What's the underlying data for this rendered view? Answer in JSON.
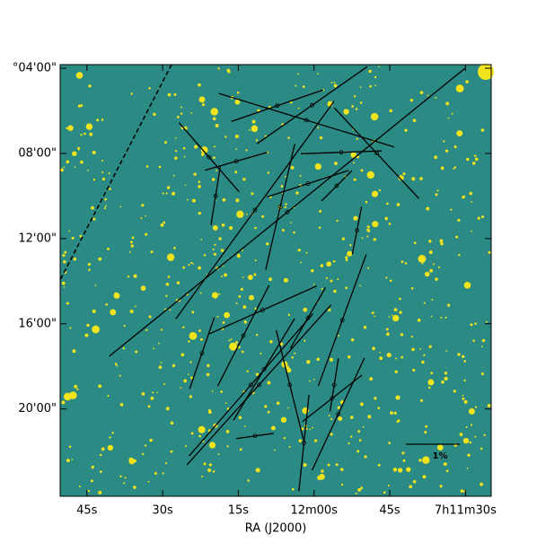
{
  "chart_data": {
    "type": "vector",
    "xlabel": "RA (J2000)",
    "xlim": [
      110.3,
      24.9
    ],
    "ylim": [
      3.83,
      24.1
    ],
    "xticks": [
      {
        "value": 105,
        "label": "45s"
      },
      {
        "value": 90,
        "label": "30s"
      },
      {
        "value": 75,
        "label": "15s"
      },
      {
        "value": 60,
        "label": "12m00s"
      },
      {
        "value": 45,
        "label": "45s"
      },
      {
        "value": 30,
        "label": "7h11m30s"
      }
    ],
    "yticks": [
      {
        "value": 4,
        "label": "°04'00\""
      },
      {
        "value": 8,
        "label": "08'00\""
      },
      {
        "value": 12,
        "label": "12'00\""
      },
      {
        "value": 16,
        "label": "16'00\""
      },
      {
        "value": 20,
        "label": "20'00\""
      }
    ],
    "color": "#000000",
    "vectors": {
      "x": [
        65.3,
        61.5,
        67.3,
        80.8,
        79.5,
        66.7,
        62.0,
        71.7,
        47.6,
        54.6,
        51.5,
        70.2,
        82.2,
        70.9,
        74.0,
        71.7,
        69.9,
        72.5,
        55.2,
        64.8,
        56.4,
        56.0,
        54.4,
        61.2,
        60.4,
        75.4,
        61.2,
        55.5
      ],
      "y": [
        10.76,
        6.44,
        5.76,
        8.18,
        9.99,
        10.51,
        21.6,
        10.66,
        7.99,
        7.95,
        11.62,
        15.36,
        17.38,
        18.87,
        16.56,
        21.27,
        18.14,
        18.87,
        20.24,
        18.87,
        19.5,
        18.87,
        15.83,
        15.72,
        5.74,
        8.37,
        9.42,
        9.52
      ],
      "p": [
        8.5,
        3.4,
        1.8,
        1.7,
        1.1,
        2.4,
        1.8,
        5.0,
        2.3,
        1.5,
        0.9,
        2.2,
        1.4,
        4.0,
        2.1,
        0.7,
        2.2,
        3.5,
        2.3,
        2.1,
        1.4,
        1.0,
        2.6,
        1.3,
        2.5,
        1.2,
        1.6,
        0.8
      ],
      "pa": [
        129,
        73,
        109,
        41,
        171,
        167,
        174,
        144,
        43,
        92,
        169,
        114,
        161,
        138,
        153,
        98,
        149,
        139,
        155,
        14,
        128,
        171,
        160,
        150,
        125,
        106,
        108,
        135
      ]
    },
    "scale_bar": {
      "value": 1,
      "label": "1%"
    }
  }
}
